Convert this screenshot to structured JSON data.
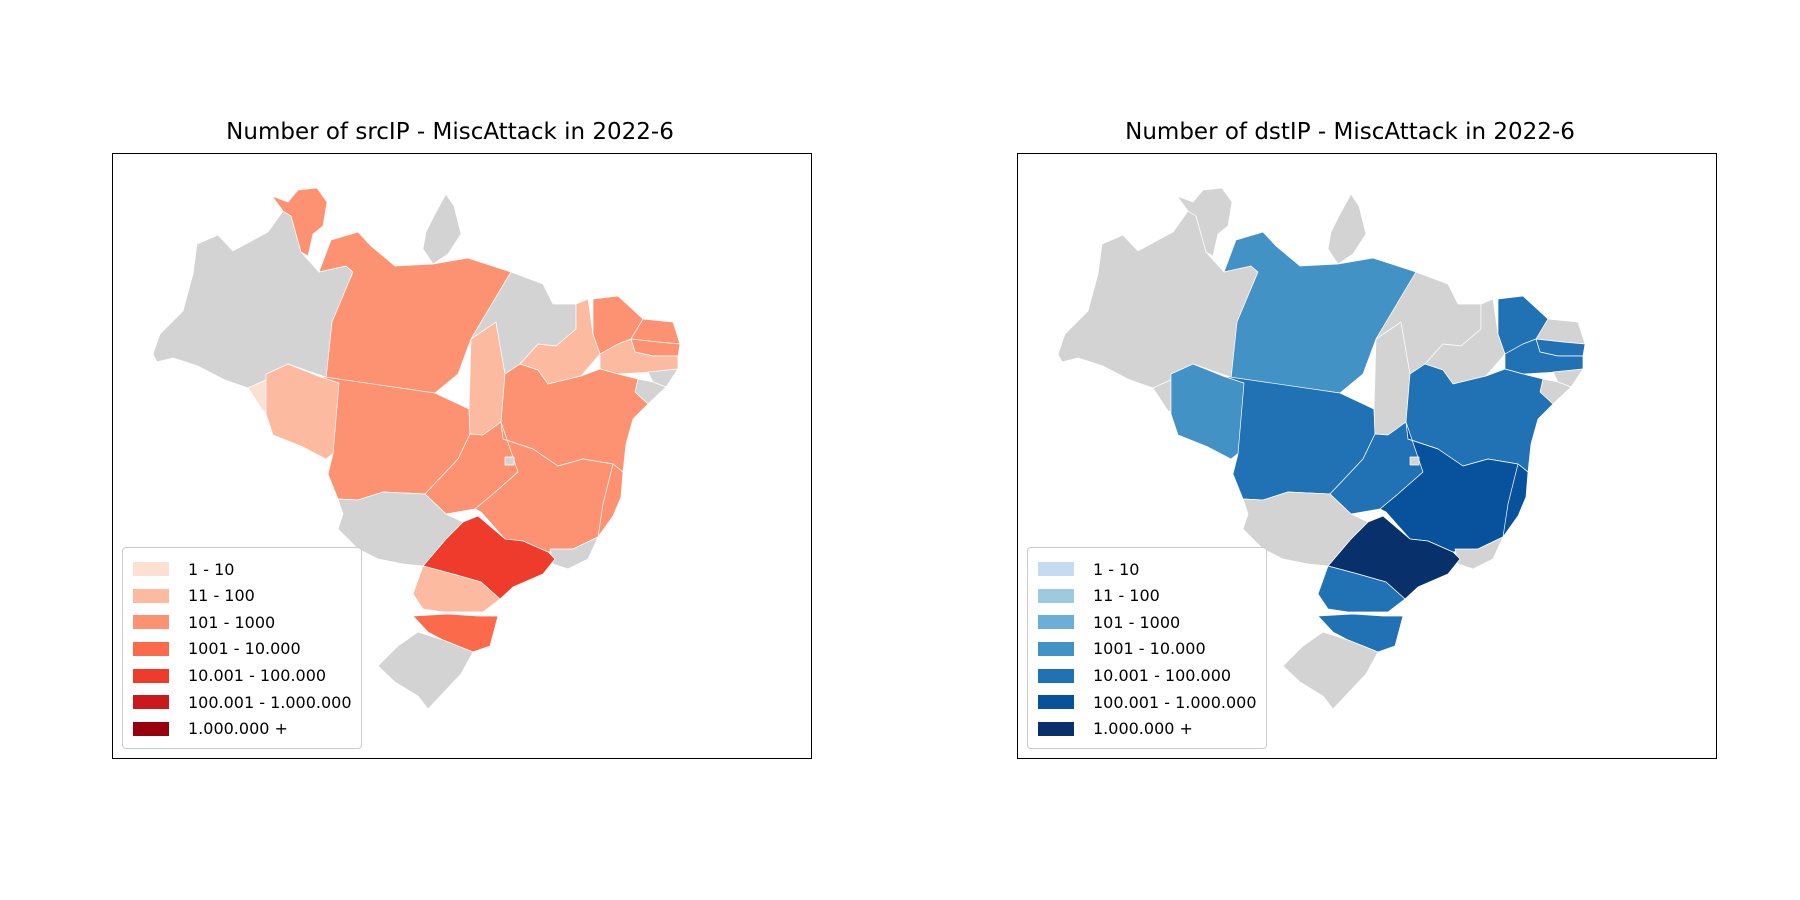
{
  "panels": [
    {
      "title": "Number of srcIP - MiscAttack in 2022-6",
      "palette": [
        "#fee0d2",
        "#fcbba1",
        "#fc9272",
        "#fb6a4a",
        "#ef3b2c",
        "#cb181d",
        "#99000d"
      ],
      "legend": [
        "1 - 10",
        "11 - 100",
        "101 - 1000",
        "1001 - 10.000",
        "10.001 - 100.000",
        "100.001 - 1.000.000",
        "1.000.000 +"
      ],
      "states": {
        "AC": 0,
        "AM": -1,
        "RR": 2,
        "PA": 2,
        "AP": -1,
        "RO": 1,
        "MT": 2,
        "TO": 1,
        "MA": -1,
        "PI": 1,
        "CE": 2,
        "RN": 2,
        "PB": 2,
        "PE": 1,
        "AL": -1,
        "SE": -1,
        "BA": 2,
        "GO": 2,
        "DF": -1,
        "MG": 2,
        "ES": 2,
        "RJ": -1,
        "SP": 4,
        "MS": -1,
        "PR": 1,
        "SC": 3,
        "RS": -1
      }
    },
    {
      "title": "Number of dstIP - MiscAttack in 2022-6",
      "palette": [
        "#c6dbef",
        "#9ecae1",
        "#6baed6",
        "#4292c6",
        "#2171b5",
        "#08519c",
        "#08306b"
      ],
      "legend": [
        "1 - 10",
        "11 - 100",
        "101 - 1000",
        "1001 - 10.000",
        "10.001 - 100.000",
        "100.001 - 1.000.000",
        "1.000.000 +"
      ],
      "states": {
        "AC": -1,
        "AM": -1,
        "RR": -1,
        "PA": 3,
        "AP": -1,
        "RO": 3,
        "MT": 4,
        "TO": -1,
        "MA": -1,
        "PI": -1,
        "CE": 4,
        "RN": -1,
        "PB": 4,
        "PE": 4,
        "AL": -1,
        "SE": -1,
        "BA": 4,
        "GO": 4,
        "DF": -1,
        "MG": 5,
        "ES": 5,
        "RJ": -1,
        "SP": 6,
        "MS": -1,
        "PR": 4,
        "SC": 4,
        "RS": -1
      }
    }
  ]
}
